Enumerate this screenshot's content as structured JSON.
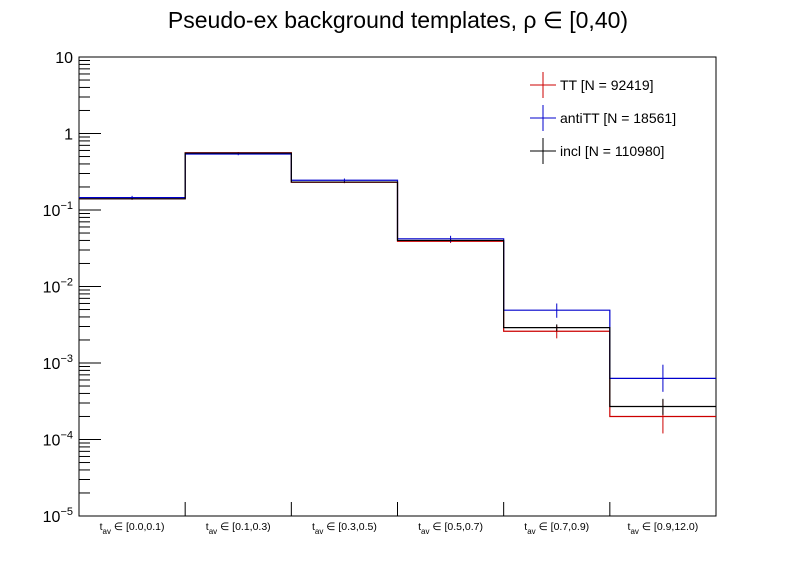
{
  "chart_data": {
    "type": "bar",
    "title": "Pseudo-ex background templates,   ρ ∈ [0,40)",
    "xlabel": "",
    "ylabel": "",
    "yscale": "log",
    "ylim": [
      1e-05,
      10
    ],
    "y_tick_labels": [
      {
        "base": "10",
        "exp": "",
        "value": 10
      },
      {
        "base": "1",
        "exp": "",
        "value": 1
      },
      {
        "base": "10",
        "exp": "−1",
        "value": 0.1
      },
      {
        "base": "10",
        "exp": "−2",
        "value": 0.01
      },
      {
        "base": "10",
        "exp": "−3",
        "value": 0.001
      },
      {
        "base": "10",
        "exp": "−4",
        "value": 0.0001
      },
      {
        "base": "10",
        "exp": "−5",
        "value": 1e-05
      }
    ],
    "categories": [
      {
        "main": "t",
        "sub": "av",
        "range": " ∈ [0.0,0.1)"
      },
      {
        "main": "t",
        "sub": "av",
        "range": " ∈ [0.1,0.3)"
      },
      {
        "main": "t",
        "sub": "av",
        "range": " ∈ [0.3,0.5)"
      },
      {
        "main": "t",
        "sub": "av",
        "range": " ∈ [0.5,0.7)"
      },
      {
        "main": "t",
        "sub": "av",
        "range": " ∈ [0.7,0.9)"
      },
      {
        "main": "t",
        "sub": "av",
        "range": " ∈ [0.9,12.0)"
      }
    ],
    "grid": false,
    "legend_position": "top-right",
    "series": [
      {
        "name": "TT [N = 92419]",
        "color": "#cc0000",
        "values": [
          0.14,
          0.56,
          0.23,
          0.039,
          0.0026,
          0.0002
        ],
        "err_low": [
          0.136,
          0.548,
          0.224,
          0.037,
          0.0021,
          0.00012
        ],
        "err_high": [
          0.144,
          0.572,
          0.236,
          0.041,
          0.0031,
          0.00033
        ]
      },
      {
        "name": "antiTT [N = 18561]",
        "color": "#0000cc",
        "values": [
          0.145,
          0.54,
          0.245,
          0.042,
          0.0049,
          0.00063
        ],
        "err_low": [
          0.137,
          0.52,
          0.232,
          0.038,
          0.0039,
          0.00042
        ],
        "err_high": [
          0.153,
          0.56,
          0.258,
          0.046,
          0.006,
          0.00095
        ]
      },
      {
        "name": "incl [N = 110980]",
        "color": "#000000",
        "values": [
          0.14,
          0.555,
          0.232,
          0.04,
          0.0029,
          0.00027
        ],
        "err_low": [
          0.137,
          0.548,
          0.227,
          0.039,
          0.0026,
          0.00021
        ],
        "err_high": [
          0.143,
          0.562,
          0.237,
          0.041,
          0.0032,
          0.00034
        ]
      }
    ]
  }
}
